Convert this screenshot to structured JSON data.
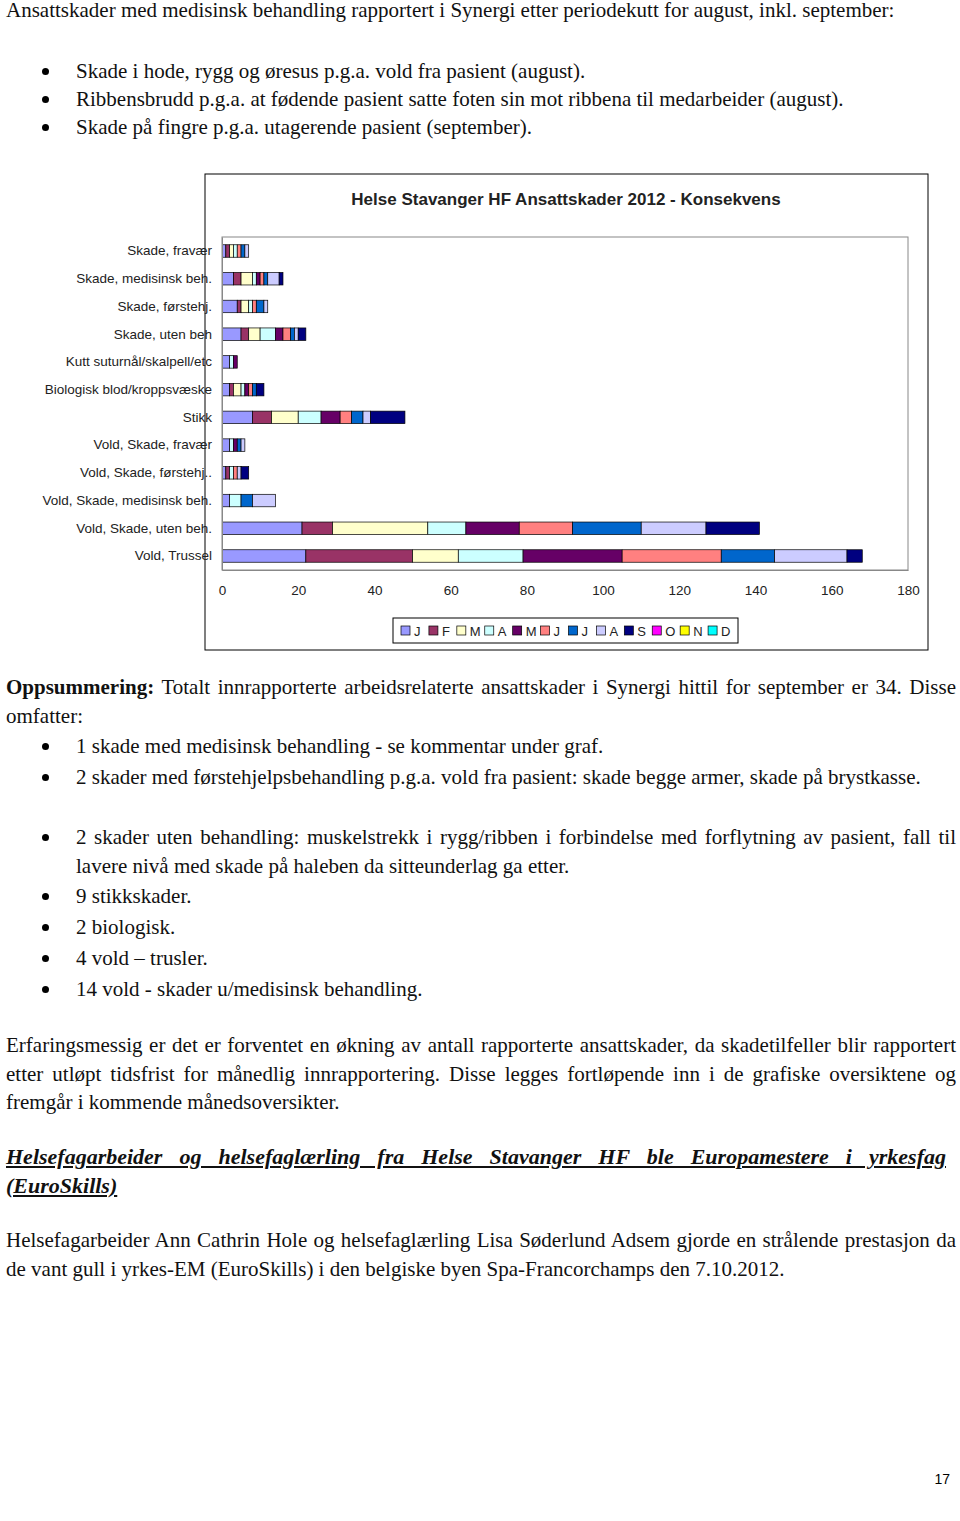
{
  "document": {
    "intro": "Ansattskader med medisinsk behandling rapportert i Synergi etter periodekutt for august, inkl. september:",
    "intro_bullets": [
      "Skade i hode, rygg og øresus p.g.a. vold fra pasient (august).",
      "Ribbensbrudd p.g.a. at fødende pasient satte foten sin mot ribbena til medarbeider (august).",
      "Skade på fingre p.g.a. utagerende pasient (september)."
    ],
    "summary_label": "Oppsummering:",
    "summary_text": "Totalt innrapporterte arbeidsrelaterte ansattskader i Synergi hittil for september er 34. Disse omfatter:",
    "summary_bullets": [
      "1 skade med medisinsk behandling - se kommentar under graf.",
      "2 skader med førstehjelpsbehandling p.g.a. vold fra pasient: skade begge armer, skade på brystkasse.",
      "2 skader uten behandling: muskelstrekk i rygg/ribben i forbindelse med forflytning av pasient, fall til lavere nivå med skade på haleben da sitteunderlag ga etter.",
      "9 stikkskader.",
      "2 biologisk.",
      "4 vold – trusler.",
      "14 vold - skader u/medisinsk behandling."
    ],
    "note": "Erfaringsmessig er det er forventet en økning av antall rapporterte ansattskader, da skadetilfeller blir rapportert etter utløpt tidsfrist for månedlig innrapportering. Disse legges fortløpende inn i de grafiske oversiktene og fremgår i kommende månedsoversikter.",
    "heading": "Helsefagarbeider og helsefaglærling fra Helse Stavanger HF ble Europamestere i yrkesfag (EuroSkills)",
    "news": "Helsefagarbeider Ann Cathrin Hole og helsefaglærling Lisa Søderlund Adsem gjorde en strålende prestasjon da de vant gull i yrkes-EM (EuroSkills) i den belgiske byen Spa-Francorchamps den 7.10.2012.",
    "page_number": "17"
  },
  "chart_data": {
    "type": "bar",
    "orientation": "horizontal",
    "stacked": true,
    "legend": "bottom",
    "title": "Helse Stavanger HF Ansattskader 2012 - Konsekvens",
    "categories": [
      "Skade, fravær",
      "Skade, medisinsk beh.",
      "Skade, førstehj.",
      "Skade, uten beh",
      "Kutt suturnål/skalpell/etc",
      "Biologisk blod/kroppsvæske",
      "Stikk",
      "Vold, Skade, fravær",
      "Vold, Skade, førstehj..",
      "Vold, Skade, medisinsk beh.",
      "Vold, Skade, uten beh.",
      "Vold, Trussel"
    ],
    "xlim": [
      0,
      180
    ],
    "xticks": [
      0,
      20,
      40,
      60,
      80,
      100,
      120,
      140,
      160,
      180
    ],
    "series": [
      {
        "name": "J",
        "color": "#9999ff",
        "values": [
          1,
          3,
          4,
          5,
          2,
          2,
          8,
          2,
          1,
          2,
          21,
          22
        ]
      },
      {
        "name": "F",
        "color": "#993366",
        "values": [
          1,
          2,
          1,
          2,
          0,
          1,
          5,
          0,
          1,
          0,
          8,
          28
        ]
      },
      {
        "name": "M",
        "color": "#ffffcc",
        "values": [
          1,
          3,
          2,
          3,
          0,
          2,
          7,
          0,
          0,
          0,
          25,
          12
        ]
      },
      {
        "name": "A",
        "color": "#ccffff",
        "values": [
          1,
          1,
          1,
          4,
          1,
          1,
          6,
          1,
          1,
          3,
          10,
          17
        ]
      },
      {
        "name": "M",
        "color": "#660066",
        "values": [
          0,
          1,
          0,
          2,
          1,
          1,
          5,
          1,
          0,
          0,
          14,
          26
        ]
      },
      {
        "name": "J",
        "color": "#ff8080",
        "values": [
          1,
          1,
          1,
          2,
          0,
          1,
          3,
          0,
          1,
          0,
          14,
          26
        ]
      },
      {
        "name": "J",
        "color": "#0066cc",
        "values": [
          1,
          1,
          2,
          1,
          0,
          1,
          3,
          1,
          0,
          3,
          18,
          14
        ]
      },
      {
        "name": "A",
        "color": "#ccccff",
        "values": [
          1,
          3,
          1,
          1,
          0,
          0,
          2,
          1,
          1,
          6,
          17,
          19
        ]
      },
      {
        "name": "S",
        "color": "#000080",
        "values": [
          0,
          1,
          0,
          2,
          0,
          2,
          9,
          0,
          2,
          0,
          14,
          4
        ]
      },
      {
        "name": "O",
        "color": "#ff00ff",
        "values": [
          0,
          0,
          0,
          0,
          0,
          0,
          0,
          0,
          0,
          0,
          0,
          0
        ]
      },
      {
        "name": "N",
        "color": "#ffff00",
        "values": [
          0,
          0,
          0,
          0,
          0,
          0,
          0,
          0,
          0,
          0,
          0,
          0
        ]
      },
      {
        "name": "D",
        "color": "#00ffff",
        "values": [
          0,
          0,
          0,
          0,
          0,
          0,
          0,
          0,
          0,
          0,
          0,
          0
        ]
      }
    ]
  }
}
